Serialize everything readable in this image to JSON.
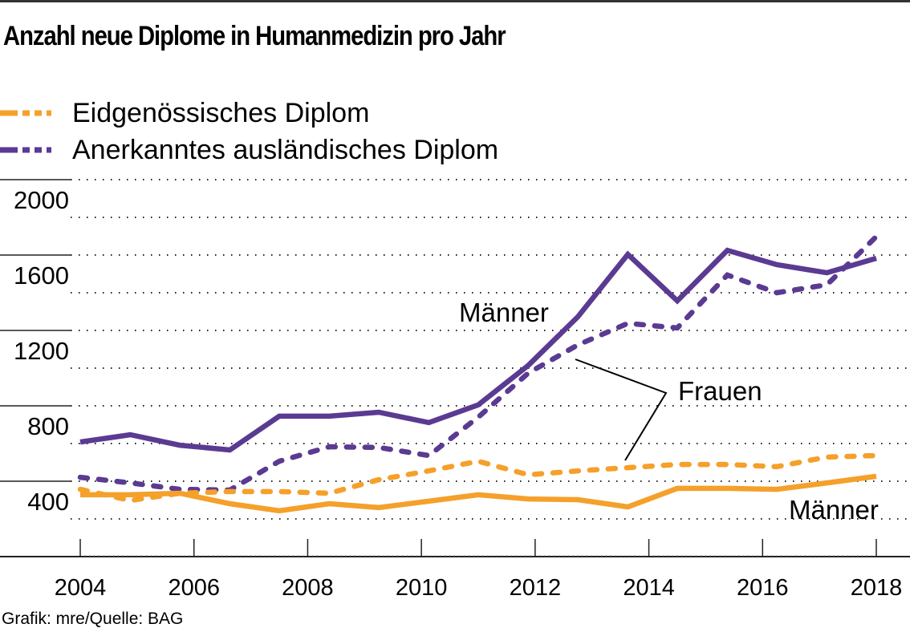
{
  "chart_data": {
    "type": "line",
    "title": "Anzahl neue Diplome in Humanmedizin pro Jahr",
    "xlabel": "",
    "ylabel": "",
    "xlim": [
      2004,
      2018
    ],
    "ylim": [
      0,
      2000
    ],
    "grid": true,
    "x_ticks": [
      2004,
      2006,
      2008,
      2010,
      2012,
      2014,
      2016,
      2018
    ],
    "x_tick_labels": [
      "2004",
      "2006",
      "2008",
      "2010",
      "2012",
      "2014",
      "2016",
      "2018"
    ],
    "y_ticks": [
      400,
      800,
      1200,
      1600,
      2000
    ],
    "y_tick_labels": [
      "400",
      "800",
      "1200",
      "1600",
      "2000"
    ],
    "y_minor_gridlines": [
      200,
      600,
      1000,
      1400,
      1800
    ],
    "legend": {
      "placement": "top-left",
      "entries": [
        {
          "label": "Eidgenössisches Diplom",
          "color": "#F5A02A"
        },
        {
          "label": "Anerkanntes ausländisches Diplom",
          "color": "#5B3A92"
        }
      ]
    },
    "x": [
      2004,
      2004.88,
      2005.75,
      2006.63,
      2007.5,
      2008.38,
      2009.25,
      2010.13,
      2011,
      2011.88,
      2012.75,
      2013.63,
      2014.5,
      2015.38,
      2016.25,
      2017.13,
      2018
    ],
    "series": [
      {
        "name": "Anerkanntes ausländisches Diplom – Männer",
        "color": "#5B3A92",
        "style": "solid",
        "values": [
          608,
          647,
          591,
          566,
          745,
          745,
          766,
          711,
          805,
          1015,
          1272,
          1604,
          1357,
          1625,
          1549,
          1506,
          1583
        ]
      },
      {
        "name": "Anerkanntes ausländisches Diplom – Frauen",
        "color": "#5B3A92",
        "style": "dashed",
        "values": [
          421,
          391,
          357,
          353,
          506,
          583,
          579,
          536,
          740,
          974,
          1123,
          1238,
          1213,
          1494,
          1400,
          1442,
          1698
        ]
      },
      {
        "name": "Eidgenössisches Diplom – Frauen",
        "color": "#F5A02A",
        "style": "dashed",
        "values": [
          357,
          298,
          336,
          345,
          345,
          336,
          408,
          455,
          506,
          434,
          455,
          472,
          489,
          489,
          477,
          528,
          536
        ]
      },
      {
        "name": "Eidgenössisches Diplom – Männer",
        "color": "#F5A02A",
        "style": "solid",
        "values": [
          328,
          328,
          336,
          281,
          243,
          281,
          260,
          294,
          328,
          306,
          302,
          264,
          362,
          362,
          357,
          391,
          426
        ]
      }
    ],
    "annotations": [
      {
        "text": "Männer",
        "refers_to": "Anerkanntes ausländisches Diplom – Männer"
      },
      {
        "text": "Frauen",
        "refers_to": [
          "Anerkanntes ausländisches Diplom – Frauen",
          "Eidgenössisches Diplom – Frauen"
        ]
      },
      {
        "text": "Männer",
        "refers_to": "Eidgenössisches Diplom – Männer"
      }
    ]
  },
  "footer": "Grafik: mre/Quelle: BAG"
}
